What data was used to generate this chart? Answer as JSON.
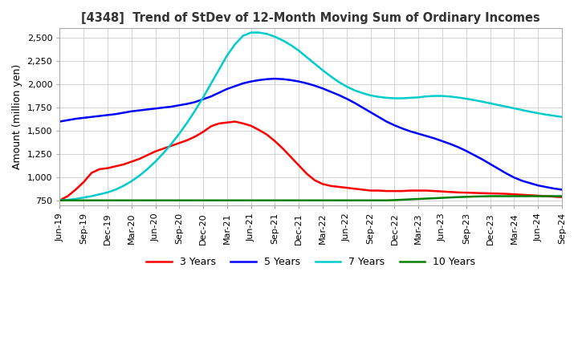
{
  "title": "[4348]  Trend of StDev of 12-Month Moving Sum of Ordinary Incomes",
  "ylabel": "Amount (million yen)",
  "ylim": [
    700,
    2600
  ],
  "yticks": [
    750,
    1000,
    1250,
    1500,
    1750,
    2000,
    2250,
    2500
  ],
  "background_color": "#ffffff",
  "grid_color": "#cccccc",
  "series": {
    "3 Years": {
      "color": "#ff0000",
      "data_x": [
        0,
        1,
        2,
        3,
        4,
        5,
        6,
        7,
        8,
        9,
        10,
        11,
        12,
        13,
        14,
        15,
        16,
        17,
        18,
        19,
        20,
        21,
        22,
        23,
        24,
        25,
        26,
        27,
        28,
        29,
        30,
        31,
        32,
        33,
        34,
        35,
        36,
        37,
        38,
        39,
        40,
        41,
        42,
        43,
        44,
        45,
        46,
        47,
        48,
        49,
        50,
        51,
        52,
        53,
        54,
        55,
        56,
        57,
        58,
        59,
        60,
        61,
        62,
        63
      ],
      "data_y": [
        755,
        800,
        870,
        950,
        1050,
        1090,
        1100,
        1120,
        1140,
        1170,
        1200,
        1240,
        1280,
        1310,
        1340,
        1370,
        1400,
        1440,
        1490,
        1550,
        1580,
        1590,
        1600,
        1580,
        1555,
        1510,
        1460,
        1390,
        1310,
        1220,
        1130,
        1040,
        970,
        930,
        910,
        900,
        890,
        880,
        870,
        860,
        860,
        855,
        855,
        855,
        860,
        860,
        860,
        855,
        850,
        845,
        840,
        838,
        835,
        832,
        830,
        828,
        825,
        820,
        815,
        810,
        805,
        800,
        795,
        790
      ]
    },
    "5 Years": {
      "color": "#0000ff",
      "data_x": [
        0,
        1,
        2,
        3,
        4,
        5,
        6,
        7,
        8,
        9,
        10,
        11,
        12,
        13,
        14,
        15,
        16,
        17,
        18,
        19,
        20,
        21,
        22,
        23,
        24,
        25,
        26,
        27,
        28,
        29,
        30,
        31,
        32,
        33,
        34,
        35,
        36,
        37,
        38,
        39,
        40,
        41,
        42,
        43,
        44,
        45,
        46,
        47,
        48,
        49,
        50,
        51,
        52,
        53,
        54,
        55,
        56,
        57,
        58,
        59,
        60,
        61,
        62,
        63
      ],
      "data_y": [
        1600,
        1615,
        1630,
        1640,
        1650,
        1660,
        1670,
        1680,
        1695,
        1710,
        1720,
        1730,
        1740,
        1750,
        1760,
        1775,
        1790,
        1810,
        1840,
        1870,
        1910,
        1950,
        1980,
        2010,
        2030,
        2045,
        2055,
        2060,
        2055,
        2045,
        2030,
        2010,
        1985,
        1955,
        1920,
        1885,
        1845,
        1800,
        1750,
        1700,
        1650,
        1600,
        1560,
        1525,
        1495,
        1470,
        1445,
        1420,
        1390,
        1360,
        1325,
        1285,
        1240,
        1195,
        1145,
        1095,
        1045,
        1000,
        965,
        940,
        915,
        898,
        882,
        870
      ]
    },
    "7 Years": {
      "color": "#00cccc",
      "data_x": [
        0,
        1,
        2,
        3,
        4,
        5,
        6,
        7,
        8,
        9,
        10,
        11,
        12,
        13,
        14,
        15,
        16,
        17,
        18,
        19,
        20,
        21,
        22,
        23,
        24,
        25,
        26,
        27,
        28,
        29,
        30,
        31,
        32,
        33,
        34,
        35,
        36,
        37,
        38,
        39,
        40,
        41,
        42,
        43,
        44,
        45,
        46,
        47,
        48,
        49,
        50,
        51,
        52,
        53,
        54,
        55,
        56,
        57,
        58,
        59,
        60,
        61,
        62,
        63
      ],
      "data_y": [
        755,
        760,
        770,
        785,
        800,
        820,
        840,
        870,
        910,
        960,
        1020,
        1090,
        1170,
        1260,
        1360,
        1470,
        1590,
        1720,
        1860,
        2010,
        2160,
        2310,
        2430,
        2520,
        2555,
        2555,
        2540,
        2510,
        2470,
        2420,
        2360,
        2290,
        2220,
        2150,
        2085,
        2025,
        1975,
        1935,
        1905,
        1880,
        1865,
        1855,
        1850,
        1850,
        1855,
        1860,
        1870,
        1875,
        1875,
        1868,
        1858,
        1845,
        1830,
        1814,
        1796,
        1778,
        1760,
        1742,
        1724,
        1706,
        1690,
        1675,
        1662,
        1650
      ]
    },
    "10 Years": {
      "color": "#008000",
      "data_x": [
        0,
        1,
        2,
        3,
        4,
        5,
        6,
        7,
        8,
        9,
        10,
        11,
        12,
        13,
        14,
        15,
        16,
        17,
        18,
        19,
        20,
        21,
        22,
        23,
        24,
        25,
        26,
        27,
        28,
        29,
        30,
        31,
        32,
        33,
        34,
        35,
        36,
        37,
        38,
        39,
        40,
        41,
        42,
        43,
        44,
        45,
        46,
        47,
        48,
        49,
        50,
        51,
        52,
        53,
        54,
        55,
        56,
        57,
        58,
        59,
        60,
        61,
        62,
        63
      ],
      "data_y": [
        755,
        755,
        755,
        755,
        755,
        755,
        755,
        755,
        755,
        755,
        755,
        755,
        755,
        755,
        755,
        755,
        755,
        755,
        755,
        755,
        755,
        755,
        755,
        755,
        755,
        755,
        755,
        755,
        755,
        755,
        755,
        755,
        755,
        755,
        755,
        755,
        755,
        755,
        755,
        755,
        755,
        755,
        758,
        762,
        766,
        770,
        774,
        778,
        782,
        786,
        790,
        793,
        796,
        798,
        800,
        800,
        800,
        800,
        800,
        800,
        800,
        800,
        800,
        800
      ]
    }
  },
  "x_tick_labels": [
    "Jun-19",
    "Sep-19",
    "Dec-19",
    "Mar-20",
    "Jun-20",
    "Sep-20",
    "Dec-20",
    "Mar-21",
    "Jun-21",
    "Sep-21",
    "Dec-21",
    "Mar-22",
    "Jun-22",
    "Sep-22",
    "Dec-22",
    "Mar-23",
    "Jun-23",
    "Sep-23",
    "Dec-23",
    "Mar-24",
    "Jun-24",
    "Sep-24"
  ],
  "x_tick_positions": [
    0,
    3,
    6,
    9,
    12,
    15,
    18,
    21,
    24,
    27,
    30,
    33,
    36,
    39,
    42,
    45,
    48,
    51,
    54,
    57,
    60,
    63
  ]
}
